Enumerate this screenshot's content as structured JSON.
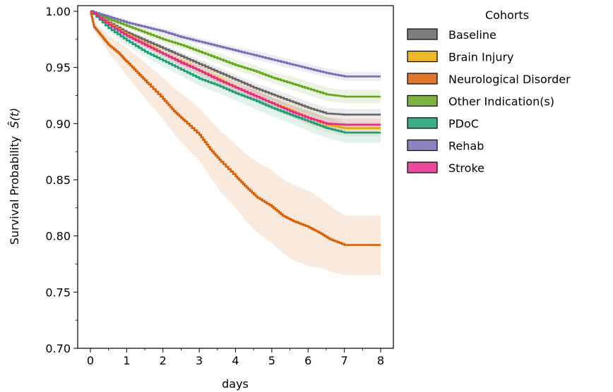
{
  "chart_data": {
    "type": "line",
    "xlabel": "days",
    "ylabel": "Survival Probability",
    "ylabel_math": "Ŝ(t)",
    "xlim": [
      -0.35,
      8.35
    ],
    "ylim": [
      0.7,
      1.005
    ],
    "xticks": [
      0,
      1,
      2,
      3,
      4,
      5,
      6,
      7,
      8
    ],
    "yticks": [
      0.7,
      0.75,
      0.8,
      0.85,
      0.9,
      0.95,
      1.0
    ],
    "ytick_labels": [
      "0.70",
      "0.75",
      "0.80",
      "0.85",
      "0.90",
      "0.95",
      "1.00"
    ],
    "grid": false,
    "legend": {
      "title": "Cohorts",
      "placement": "outside-right-top"
    },
    "series": [
      {
        "name": "Baseline",
        "color": "#666666",
        "x": [
          0,
          0.5,
          1,
          1.5,
          2,
          2.5,
          3,
          3.5,
          4,
          4.5,
          5,
          5.5,
          6,
          6.5,
          7,
          8
        ],
        "y": [
          1.0,
          0.99,
          0.981,
          0.974,
          0.967,
          0.96,
          0.953,
          0.946,
          0.939,
          0.932,
          0.926,
          0.92,
          0.914,
          0.909,
          0.908,
          0.908
        ],
        "ci_halfwidth": [
          0,
          0.002,
          0.002,
          0.003,
          0.003,
          0.003,
          0.004,
          0.004,
          0.004,
          0.004,
          0.005,
          0.005,
          0.005,
          0.005,
          0.005,
          0.005
        ]
      },
      {
        "name": "Brain Injury",
        "color": "#e6ab02",
        "x": [
          0,
          0.5,
          1,
          1.5,
          2,
          2.5,
          3,
          3.5,
          4,
          4.5,
          5,
          5.5,
          6,
          6.5,
          7,
          8
        ],
        "y": [
          1.0,
          0.989,
          0.979,
          0.971,
          0.962,
          0.955,
          0.947,
          0.94,
          0.932,
          0.925,
          0.918,
          0.912,
          0.905,
          0.899,
          0.896,
          0.896
        ],
        "ci_halfwidth": [
          0,
          0.003,
          0.003,
          0.004,
          0.004,
          0.004,
          0.005,
          0.005,
          0.005,
          0.006,
          0.006,
          0.006,
          0.007,
          0.007,
          0.007,
          0.007
        ]
      },
      {
        "name": "Neurological Disorder",
        "color": "#d95f02",
        "x": [
          0,
          0.1,
          0.3,
          0.5,
          0.8,
          1.0,
          1.3,
          1.6,
          2.0,
          2.3,
          2.6,
          3.0,
          3.3,
          3.6,
          4.0,
          4.3,
          4.6,
          5.0,
          5.3,
          5.6,
          6.0,
          6.3,
          6.6,
          7.0,
          8.0
        ],
        "y": [
          1.0,
          0.986,
          0.978,
          0.97,
          0.962,
          0.955,
          0.945,
          0.935,
          0.922,
          0.911,
          0.902,
          0.89,
          0.877,
          0.866,
          0.853,
          0.843,
          0.834,
          0.826,
          0.818,
          0.813,
          0.808,
          0.803,
          0.797,
          0.792,
          0.792
        ],
        "ci_lower": [
          1.0,
          0.982,
          0.972,
          0.962,
          0.951,
          0.942,
          0.93,
          0.918,
          0.903,
          0.89,
          0.879,
          0.866,
          0.851,
          0.838,
          0.824,
          0.812,
          0.802,
          0.793,
          0.784,
          0.778,
          0.773,
          0.772,
          0.768,
          0.765,
          0.765
        ],
        "ci_upper": [
          1.0,
          0.99,
          0.984,
          0.978,
          0.972,
          0.967,
          0.959,
          0.951,
          0.94,
          0.931,
          0.924,
          0.913,
          0.902,
          0.892,
          0.881,
          0.872,
          0.865,
          0.858,
          0.85,
          0.845,
          0.84,
          0.834,
          0.826,
          0.818,
          0.818
        ]
      },
      {
        "name": "Other Indication(s)",
        "color": "#66a61e",
        "x": [
          0,
          0.5,
          1,
          1.5,
          2,
          2.5,
          3,
          3.5,
          4,
          4.5,
          5,
          5.5,
          6,
          6.5,
          7,
          8
        ],
        "y": [
          1.0,
          0.993,
          0.987,
          0.981,
          0.975,
          0.97,
          0.964,
          0.958,
          0.952,
          0.947,
          0.941,
          0.936,
          0.931,
          0.926,
          0.924,
          0.924
        ],
        "ci_halfwidth": [
          0,
          0.002,
          0.003,
          0.003,
          0.004,
          0.004,
          0.004,
          0.005,
          0.005,
          0.005,
          0.005,
          0.006,
          0.006,
          0.006,
          0.006,
          0.006
        ]
      },
      {
        "name": "PDoC",
        "color": "#1b9e77",
        "x": [
          0,
          0.5,
          1,
          1.5,
          2,
          2.5,
          3,
          3.5,
          4,
          4.5,
          5,
          5.5,
          6,
          6.5,
          7,
          8
        ],
        "y": [
          1.0,
          0.985,
          0.974,
          0.964,
          0.956,
          0.948,
          0.94,
          0.934,
          0.927,
          0.921,
          0.914,
          0.908,
          0.902,
          0.896,
          0.892,
          0.892
        ],
        "ci_halfwidth": [
          0,
          0.004,
          0.005,
          0.005,
          0.006,
          0.006,
          0.007,
          0.007,
          0.007,
          0.008,
          0.008,
          0.008,
          0.009,
          0.009,
          0.009,
          0.009
        ]
      },
      {
        "name": "Rehab",
        "color": "#7570b3",
        "x": [
          0,
          0.5,
          1,
          1.5,
          2,
          2.5,
          3,
          3.5,
          4,
          4.5,
          5,
          5.5,
          6,
          6.5,
          7,
          8
        ],
        "y": [
          1.0,
          0.995,
          0.99,
          0.986,
          0.982,
          0.977,
          0.973,
          0.969,
          0.965,
          0.961,
          0.957,
          0.953,
          0.949,
          0.945,
          0.942,
          0.942
        ],
        "ci_halfwidth": [
          0,
          0.002,
          0.002,
          0.002,
          0.003,
          0.003,
          0.003,
          0.003,
          0.003,
          0.004,
          0.004,
          0.004,
          0.004,
          0.004,
          0.004,
          0.004
        ]
      },
      {
        "name": "Stroke",
        "color": "#e7298a",
        "x": [
          0,
          0.5,
          1,
          1.5,
          2,
          2.5,
          3,
          3.5,
          4,
          4.5,
          5,
          5.5,
          6,
          6.5,
          7,
          8
        ],
        "y": [
          1.0,
          0.988,
          0.978,
          0.97,
          0.962,
          0.954,
          0.947,
          0.939,
          0.932,
          0.925,
          0.918,
          0.911,
          0.905,
          0.9,
          0.899,
          0.899
        ],
        "ci_halfwidth": [
          0,
          0.002,
          0.003,
          0.003,
          0.003,
          0.004,
          0.004,
          0.004,
          0.004,
          0.005,
          0.005,
          0.005,
          0.005,
          0.005,
          0.005,
          0.005
        ]
      }
    ]
  }
}
